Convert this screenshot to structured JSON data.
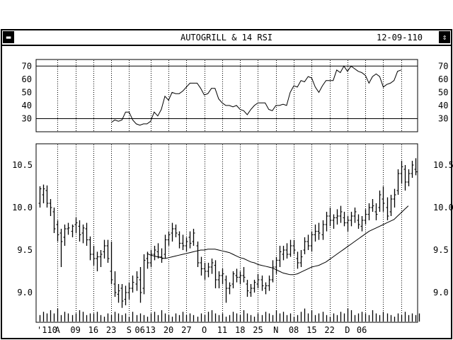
{
  "window": {
    "title": "AUTOGRILL & 14 RSI",
    "date": "12-09-110",
    "menu_icon": "minus-bar-icon",
    "scroll_icon": "up-down-arrows-icon"
  },
  "chart_data": [
    {
      "type": "line",
      "name": "rsi-panel",
      "title": "",
      "y_ticks": [
        "70",
        "60",
        "50",
        "40",
        "30"
      ],
      "ylim": [
        20,
        75
      ],
      "reference_lines": [
        70,
        30
      ],
      "x": [
        20,
        21,
        22,
        23,
        24,
        25,
        26,
        27,
        28,
        29,
        30,
        31,
        32,
        33,
        34,
        35,
        36,
        37,
        38,
        39,
        40,
        41,
        42,
        43,
        44,
        45,
        46,
        47,
        48,
        49,
        50,
        51,
        52,
        53,
        54,
        55,
        56,
        57,
        58,
        59,
        60,
        61,
        62,
        63,
        64,
        65,
        66,
        67,
        68,
        69,
        70,
        71,
        72,
        73,
        74,
        75,
        76,
        77,
        78,
        79,
        80,
        81,
        82,
        83,
        84,
        85,
        86,
        87,
        88,
        89,
        90,
        91,
        92,
        93,
        94,
        95,
        96,
        97,
        98,
        99,
        100,
        101
      ],
      "values": [
        27,
        29,
        28,
        29,
        35,
        35,
        29,
        26,
        25,
        26,
        26,
        28,
        35,
        32,
        37,
        47,
        44,
        50,
        49,
        49,
        51,
        54,
        57,
        57,
        57,
        53,
        48,
        49,
        53,
        53,
        45,
        42,
        40,
        40,
        39,
        40,
        37,
        36,
        33,
        37,
        40,
        42,
        42,
        42,
        37,
        36,
        40,
        40,
        41,
        40,
        50,
        55,
        54,
        59,
        58,
        62,
        61,
        54,
        50,
        55,
        59,
        59,
        59,
        67,
        65,
        70,
        66,
        70,
        68,
        66,
        65,
        63,
        57,
        62,
        64,
        62,
        54,
        56,
        57,
        59,
        66,
        67
      ]
    },
    {
      "type": "ohlc",
      "name": "price-panel",
      "title": "",
      "y_ticks": [
        "10.5",
        "10.0",
        "9.5",
        "9.0"
      ],
      "ylim": [
        8.65,
        10.75
      ],
      "x_tick_labels": [
        "'110",
        "A",
        "09",
        "16",
        "23",
        "S",
        "06",
        "13",
        "20",
        "27",
        "O",
        "11",
        "18",
        "25",
        "N",
        "08",
        "15",
        "22",
        "D",
        "06"
      ],
      "moving_average": {
        "start_bar": 30,
        "values": [
          9.46,
          9.44,
          9.43,
          9.42,
          9.41,
          9.4,
          9.41,
          9.42,
          9.43,
          9.44,
          9.45,
          9.46,
          9.47,
          9.48,
          9.49,
          9.5,
          9.5,
          9.51,
          9.51,
          9.51,
          9.5,
          9.49,
          9.48,
          9.47,
          9.45,
          9.43,
          9.41,
          9.4,
          9.38,
          9.36,
          9.35,
          9.33,
          9.32,
          9.31,
          9.3,
          9.29,
          9.27,
          9.25,
          9.23,
          9.22,
          9.21,
          9.21,
          9.22,
          9.24,
          9.26,
          9.28,
          9.3,
          9.31,
          9.32,
          9.34,
          9.36,
          9.39,
          9.42,
          9.45,
          9.48,
          9.51,
          9.54,
          9.57,
          9.6,
          9.63,
          9.66,
          9.69,
          9.72,
          9.74,
          9.76,
          9.78,
          9.8,
          9.82,
          9.84,
          9.86,
          9.9,
          9.94,
          9.98,
          10.02
        ]
      },
      "bars": [
        [
          10.05,
          10.25,
          10.0,
          10.22
        ],
        [
          10.15,
          10.27,
          10.05,
          10.22
        ],
        [
          10.2,
          10.26,
          10.0,
          10.05
        ],
        [
          10.05,
          10.1,
          9.9,
          10.0
        ],
        [
          9.95,
          10.0,
          9.7,
          9.75
        ],
        [
          9.8,
          9.85,
          9.6,
          9.68
        ],
        [
          9.7,
          9.75,
          9.3,
          9.6
        ],
        [
          9.65,
          9.8,
          9.55,
          9.75
        ],
        [
          9.75,
          9.82,
          9.68,
          9.76
        ],
        [
          9.72,
          9.8,
          9.65,
          9.78
        ],
        [
          9.8,
          9.88,
          9.7,
          9.82
        ],
        [
          9.78,
          9.85,
          9.6,
          9.68
        ],
        [
          9.7,
          9.8,
          9.58,
          9.76
        ],
        [
          9.75,
          9.82,
          9.55,
          9.62
        ],
        [
          9.62,
          9.66,
          9.38,
          9.45
        ],
        [
          9.45,
          9.55,
          9.32,
          9.4
        ],
        [
          9.4,
          9.48,
          9.25,
          9.42
        ],
        [
          9.42,
          9.5,
          9.3,
          9.45
        ],
        [
          9.48,
          9.62,
          9.4,
          9.55
        ],
        [
          9.55,
          9.62,
          9.35,
          9.4
        ],
        [
          9.25,
          9.6,
          9.1,
          9.15
        ],
        [
          9.1,
          9.25,
          8.95,
          9.0
        ],
        [
          8.98,
          9.1,
          8.88,
          9.02
        ],
        [
          9.05,
          9.1,
          8.82,
          8.9
        ],
        [
          8.92,
          9.08,
          8.85,
          9.0
        ],
        [
          9.0,
          9.12,
          8.92,
          9.05
        ],
        [
          9.05,
          9.2,
          9.0,
          9.12
        ],
        [
          9.1,
          9.25,
          9.02,
          9.18
        ],
        [
          9.15,
          9.3,
          8.88,
          9.0
        ],
        [
          9.05,
          9.45,
          8.98,
          9.38
        ],
        [
          9.4,
          9.48,
          9.28,
          9.35
        ],
        [
          9.35,
          9.5,
          9.3,
          9.45
        ],
        [
          9.45,
          9.55,
          9.38,
          9.5
        ],
        [
          9.48,
          9.58,
          9.4,
          9.42
        ],
        [
          9.42,
          9.52,
          9.35,
          9.4
        ],
        [
          9.45,
          9.68,
          9.4,
          9.62
        ],
        [
          9.62,
          9.72,
          9.55,
          9.68
        ],
        [
          9.7,
          9.82,
          9.6,
          9.75
        ],
        [
          9.75,
          9.8,
          9.65,
          9.7
        ],
        [
          9.68,
          9.72,
          9.52,
          9.58
        ],
        [
          9.58,
          9.68,
          9.5,
          9.55
        ],
        [
          9.55,
          9.65,
          9.48,
          9.6
        ],
        [
          9.65,
          9.72,
          9.52,
          9.58
        ],
        [
          9.6,
          9.75,
          9.55,
          9.7
        ],
        [
          9.55,
          9.6,
          9.3,
          9.35
        ],
        [
          9.35,
          9.42,
          9.2,
          9.28
        ],
        [
          9.28,
          9.35,
          9.15,
          9.25
        ],
        [
          9.25,
          9.35,
          9.18,
          9.3
        ],
        [
          9.3,
          9.4,
          9.22,
          9.35
        ],
        [
          9.32,
          9.38,
          9.05,
          9.15
        ],
        [
          9.15,
          9.25,
          9.05,
          9.2
        ],
        [
          9.2,
          9.28,
          9.1,
          9.22
        ],
        [
          9.15,
          9.2,
          8.88,
          9.05
        ],
        [
          9.05,
          9.12,
          8.98,
          9.08
        ],
        [
          9.1,
          9.25,
          9.05,
          9.22
        ],
        [
          9.2,
          9.28,
          9.12,
          9.18
        ],
        [
          9.18,
          9.25,
          9.1,
          9.2
        ],
        [
          9.2,
          9.3,
          9.12,
          9.18
        ],
        [
          9.1,
          9.15,
          8.95,
          9.02
        ],
        [
          9.0,
          9.1,
          8.95,
          9.05
        ],
        [
          9.05,
          9.15,
          9.0,
          9.12
        ],
        [
          9.1,
          9.22,
          9.05,
          9.15
        ],
        [
          9.15,
          9.2,
          9.02,
          9.08
        ],
        [
          9.05,
          9.12,
          8.98,
          9.08
        ],
        [
          9.08,
          9.2,
          9.02,
          9.15
        ],
        [
          9.15,
          9.38,
          9.12,
          9.3
        ],
        [
          9.3,
          9.42,
          9.22,
          9.38
        ],
        [
          9.38,
          9.55,
          9.3,
          9.48
        ],
        [
          9.45,
          9.55,
          9.38,
          9.5
        ],
        [
          9.5,
          9.58,
          9.4,
          9.45
        ],
        [
          9.45,
          9.62,
          9.42,
          9.55
        ],
        [
          9.55,
          9.62,
          9.45,
          9.5
        ],
        [
          9.4,
          9.48,
          9.28,
          9.35
        ],
        [
          9.35,
          9.5,
          9.3,
          9.42
        ],
        [
          9.5,
          9.65,
          9.45,
          9.6
        ],
        [
          9.6,
          9.68,
          9.5,
          9.55
        ],
        [
          9.55,
          9.72,
          9.48,
          9.68
        ],
        [
          9.68,
          9.8,
          9.6,
          9.72
        ],
        [
          9.72,
          9.82,
          9.62,
          9.7
        ],
        [
          9.68,
          9.85,
          9.62,
          9.8
        ],
        [
          9.8,
          9.95,
          9.72,
          9.9
        ],
        [
          9.9,
          10.0,
          9.78,
          9.85
        ],
        [
          9.85,
          9.92,
          9.75,
          9.88
        ],
        [
          9.88,
          9.98,
          9.8,
          9.9
        ],
        [
          9.9,
          10.02,
          9.82,
          9.95
        ],
        [
          9.88,
          9.95,
          9.78,
          9.82
        ],
        [
          9.82,
          9.9,
          9.72,
          9.85
        ],
        [
          9.85,
          9.95,
          9.78,
          9.9
        ],
        [
          9.9,
          10.0,
          9.82,
          9.95
        ],
        [
          9.85,
          9.92,
          9.75,
          9.8
        ],
        [
          9.78,
          9.9,
          9.72,
          9.85
        ],
        [
          9.85,
          9.98,
          9.8,
          9.92
        ],
        [
          9.92,
          10.05,
          9.85,
          10.0
        ],
        [
          10.0,
          10.1,
          9.95,
          10.02
        ],
        [
          9.95,
          10.05,
          9.85,
          9.92
        ],
        [
          10.0,
          10.2,
          9.95,
          10.15
        ],
        [
          10.1,
          10.25,
          9.95,
          10.05
        ],
        [
          10.0,
          10.12,
          9.85,
          9.9
        ],
        [
          9.95,
          10.15,
          9.9,
          10.1
        ],
        [
          10.1,
          10.22,
          10.0,
          10.15
        ],
        [
          10.2,
          10.45,
          10.15,
          10.4
        ],
        [
          10.4,
          10.55,
          10.28,
          10.48
        ],
        [
          10.45,
          10.5,
          10.2,
          10.3
        ],
        [
          10.3,
          10.45,
          10.25,
          10.4
        ],
        [
          10.4,
          10.55,
          10.35,
          10.5
        ],
        [
          10.45,
          10.58,
          10.38,
          10.42
        ]
      ],
      "volume": [
        4,
        6,
        5,
        7,
        5,
        8,
        4,
        6,
        5,
        4,
        5,
        7,
        6,
        4,
        5,
        5,
        6,
        4,
        3,
        5,
        4,
        6,
        5,
        4,
        5,
        3,
        6,
        4,
        5,
        4,
        3,
        5,
        6,
        4,
        7,
        5,
        4,
        3,
        5,
        4,
        6,
        4,
        5,
        4,
        3,
        5,
        4,
        6,
        7,
        5,
        4,
        5,
        3,
        4,
        6,
        5,
        4,
        7,
        5,
        4,
        3,
        5,
        4,
        6,
        5,
        4,
        7,
        5,
        6,
        4,
        5,
        3,
        4,
        6,
        8,
        5,
        7,
        4,
        5,
        6,
        4,
        3,
        5,
        4,
        6,
        5,
        8,
        7,
        4,
        5,
        6,
        5,
        4,
        7,
        5,
        4,
        6,
        5,
        4,
        3,
        5,
        4,
        6,
        4,
        5,
        4,
        5
      ]
    }
  ]
}
